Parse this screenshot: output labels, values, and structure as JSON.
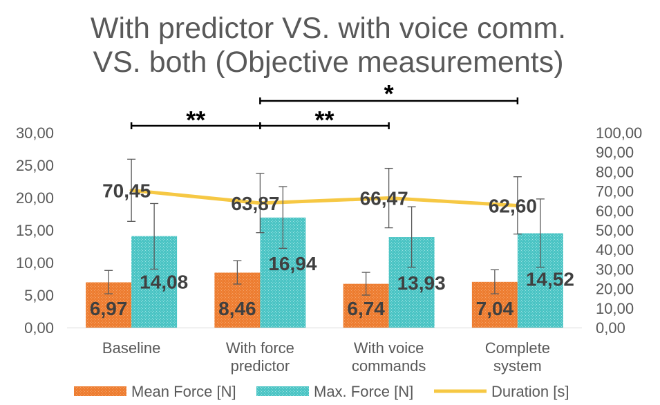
{
  "chart_data": {
    "type": "bar",
    "title_lines": [
      "With predictor VS. with voice comm.",
      "VS. both (Objective measurements)"
    ],
    "categories": [
      [
        "Baseline"
      ],
      [
        "With force",
        "predictor"
      ],
      [
        "With voice",
        "commands"
      ],
      [
        "Complete",
        "system"
      ]
    ],
    "y_left": {
      "min": 0,
      "max": 30,
      "step": 5,
      "tick_labels": [
        "0,00",
        "5,00",
        "10,00",
        "15,00",
        "20,00",
        "25,00",
        "30,00"
      ]
    },
    "y_right": {
      "min": 0,
      "max": 100,
      "step": 10,
      "tick_labels": [
        "0,00",
        "10,00",
        "20,00",
        "30,00",
        "40,00",
        "50,00",
        "60,00",
        "70,00",
        "80,00",
        "90,00",
        "100,00"
      ]
    },
    "series": [
      {
        "name": "Mean Force [N]",
        "kind": "bar",
        "axis": "left",
        "color": "#ED7D31",
        "values": [
          6.97,
          8.46,
          6.74,
          7.04
        ],
        "labels": [
          "6,97",
          "8,46",
          "6,74",
          "7,04"
        ],
        "error_low": [
          5.2,
          6.7,
          5.0,
          5.2
        ],
        "error_high": [
          8.8,
          10.3,
          8.5,
          8.9
        ]
      },
      {
        "name": "Max. Force [N]",
        "kind": "bar",
        "axis": "left",
        "color": "#4BC4C4",
        "values": [
          14.08,
          16.94,
          13.93,
          14.52
        ],
        "labels": [
          "14,08",
          "16,94",
          "13,93",
          "14,52"
        ],
        "error_low": [
          9.0,
          12.2,
          9.3,
          9.3
        ],
        "error_high": [
          19.1,
          21.7,
          18.6,
          19.8
        ]
      },
      {
        "name": "Duration [s]",
        "kind": "line",
        "axis": "right",
        "color": "#F6C844",
        "values": [
          70.45,
          63.87,
          66.47,
          62.6
        ],
        "labels": [
          "70,45",
          "63,87",
          "66,47",
          "62,60"
        ],
        "error_low": [
          54.5,
          48.7,
          51.2,
          48.0
        ],
        "error_high": [
          86.4,
          79.1,
          81.7,
          77.4
        ]
      }
    ],
    "significance": [
      {
        "from": 0,
        "to": 1,
        "label": "**"
      },
      {
        "from": 1,
        "to": 2,
        "label": "**"
      },
      {
        "from": 1,
        "to": 3,
        "label": "*"
      }
    ],
    "legend_position": "bottom"
  }
}
